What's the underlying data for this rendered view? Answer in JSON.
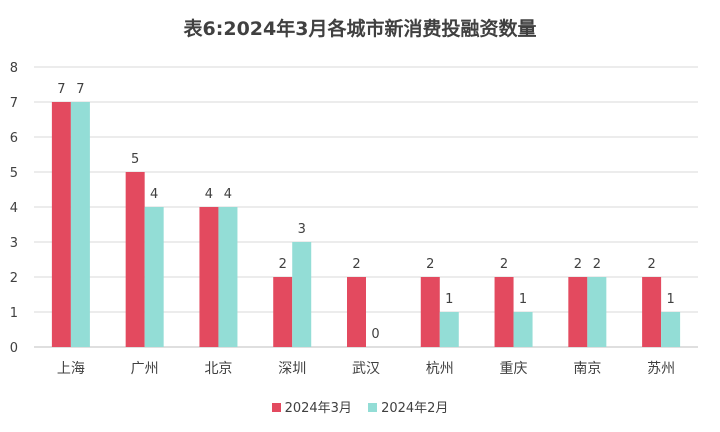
{
  "chart_data": {
    "type": "bar",
    "title": "表6:2024年3月各城市新消费投融资数量",
    "categories": [
      "上海",
      "广州",
      "北京",
      "深圳",
      "武汉",
      "杭州",
      "重庆",
      "南京",
      "苏州"
    ],
    "series": [
      {
        "name": "2024年3月",
        "color": "#e34a5f",
        "values": [
          7,
          5,
          4,
          2,
          2,
          2,
          2,
          2,
          2
        ]
      },
      {
        "name": "2024年2月",
        "color": "#93ddd6",
        "values": [
          7,
          4,
          4,
          3,
          0,
          1,
          1,
          2,
          1
        ]
      }
    ],
    "ylim": [
      0,
      8
    ],
    "yticks": [
      0,
      1,
      2,
      3,
      4,
      5,
      6,
      7,
      8
    ],
    "grid": true,
    "legend": "bottom",
    "data_labels": true
  }
}
